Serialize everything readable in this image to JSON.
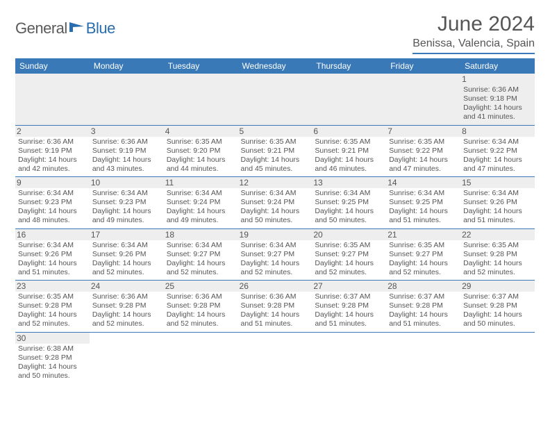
{
  "brand": {
    "part1": "General",
    "part2": "Blue"
  },
  "title": "June 2024",
  "location": "Benissa, Valencia, Spain",
  "colors": {
    "header_bg": "#3a79b7",
    "header_text": "#ffffff",
    "stripe_bg": "#eeeeee",
    "border": "#3a79b7",
    "text": "#555555"
  },
  "daysOfWeek": [
    "Sunday",
    "Monday",
    "Tuesday",
    "Wednesday",
    "Thursday",
    "Friday",
    "Saturday"
  ],
  "weeks": [
    [
      null,
      null,
      null,
      null,
      null,
      null,
      {
        "n": "1",
        "sr": "6:36 AM",
        "ss": "9:18 PM",
        "dl": "14 hours and 41 minutes."
      }
    ],
    [
      {
        "n": "2",
        "sr": "6:36 AM",
        "ss": "9:19 PM",
        "dl": "14 hours and 42 minutes."
      },
      {
        "n": "3",
        "sr": "6:36 AM",
        "ss": "9:19 PM",
        "dl": "14 hours and 43 minutes."
      },
      {
        "n": "4",
        "sr": "6:35 AM",
        "ss": "9:20 PM",
        "dl": "14 hours and 44 minutes."
      },
      {
        "n": "5",
        "sr": "6:35 AM",
        "ss": "9:21 PM",
        "dl": "14 hours and 45 minutes."
      },
      {
        "n": "6",
        "sr": "6:35 AM",
        "ss": "9:21 PM",
        "dl": "14 hours and 46 minutes."
      },
      {
        "n": "7",
        "sr": "6:35 AM",
        "ss": "9:22 PM",
        "dl": "14 hours and 47 minutes."
      },
      {
        "n": "8",
        "sr": "6:34 AM",
        "ss": "9:22 PM",
        "dl": "14 hours and 47 minutes."
      }
    ],
    [
      {
        "n": "9",
        "sr": "6:34 AM",
        "ss": "9:23 PM",
        "dl": "14 hours and 48 minutes."
      },
      {
        "n": "10",
        "sr": "6:34 AM",
        "ss": "9:23 PM",
        "dl": "14 hours and 49 minutes."
      },
      {
        "n": "11",
        "sr": "6:34 AM",
        "ss": "9:24 PM",
        "dl": "14 hours and 49 minutes."
      },
      {
        "n": "12",
        "sr": "6:34 AM",
        "ss": "9:24 PM",
        "dl": "14 hours and 50 minutes."
      },
      {
        "n": "13",
        "sr": "6:34 AM",
        "ss": "9:25 PM",
        "dl": "14 hours and 50 minutes."
      },
      {
        "n": "14",
        "sr": "6:34 AM",
        "ss": "9:25 PM",
        "dl": "14 hours and 51 minutes."
      },
      {
        "n": "15",
        "sr": "6:34 AM",
        "ss": "9:26 PM",
        "dl": "14 hours and 51 minutes."
      }
    ],
    [
      {
        "n": "16",
        "sr": "6:34 AM",
        "ss": "9:26 PM",
        "dl": "14 hours and 51 minutes."
      },
      {
        "n": "17",
        "sr": "6:34 AM",
        "ss": "9:26 PM",
        "dl": "14 hours and 52 minutes."
      },
      {
        "n": "18",
        "sr": "6:34 AM",
        "ss": "9:27 PM",
        "dl": "14 hours and 52 minutes."
      },
      {
        "n": "19",
        "sr": "6:34 AM",
        "ss": "9:27 PM",
        "dl": "14 hours and 52 minutes."
      },
      {
        "n": "20",
        "sr": "6:35 AM",
        "ss": "9:27 PM",
        "dl": "14 hours and 52 minutes."
      },
      {
        "n": "21",
        "sr": "6:35 AM",
        "ss": "9:27 PM",
        "dl": "14 hours and 52 minutes."
      },
      {
        "n": "22",
        "sr": "6:35 AM",
        "ss": "9:28 PM",
        "dl": "14 hours and 52 minutes."
      }
    ],
    [
      {
        "n": "23",
        "sr": "6:35 AM",
        "ss": "9:28 PM",
        "dl": "14 hours and 52 minutes."
      },
      {
        "n": "24",
        "sr": "6:36 AM",
        "ss": "9:28 PM",
        "dl": "14 hours and 52 minutes."
      },
      {
        "n": "25",
        "sr": "6:36 AM",
        "ss": "9:28 PM",
        "dl": "14 hours and 52 minutes."
      },
      {
        "n": "26",
        "sr": "6:36 AM",
        "ss": "9:28 PM",
        "dl": "14 hours and 51 minutes."
      },
      {
        "n": "27",
        "sr": "6:37 AM",
        "ss": "9:28 PM",
        "dl": "14 hours and 51 minutes."
      },
      {
        "n": "28",
        "sr": "6:37 AM",
        "ss": "9:28 PM",
        "dl": "14 hours and 51 minutes."
      },
      {
        "n": "29",
        "sr": "6:37 AM",
        "ss": "9:28 PM",
        "dl": "14 hours and 50 minutes."
      }
    ],
    [
      {
        "n": "30",
        "sr": "6:38 AM",
        "ss": "9:28 PM",
        "dl": "14 hours and 50 minutes."
      },
      null,
      null,
      null,
      null,
      null,
      null
    ]
  ],
  "labels": {
    "sunrise": "Sunrise:",
    "sunset": "Sunset:",
    "daylight": "Daylight:"
  }
}
